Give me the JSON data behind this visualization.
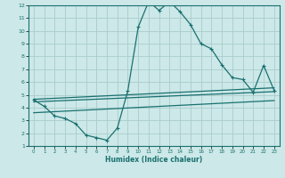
{
  "xlabel": "Humidex (Indice chaleur)",
  "bg_color": "#cce8e8",
  "grid_color": "#aacccc",
  "line_color": "#1a7070",
  "xlim": [
    -0.5,
    23.5
  ],
  "ylim": [
    1,
    12
  ],
  "xticks": [
    0,
    1,
    2,
    3,
    4,
    5,
    6,
    7,
    8,
    9,
    10,
    11,
    12,
    13,
    14,
    15,
    16,
    17,
    18,
    19,
    20,
    21,
    22,
    23
  ],
  "yticks": [
    1,
    2,
    3,
    4,
    5,
    6,
    7,
    8,
    9,
    10,
    11,
    12
  ],
  "main_line": {
    "x": [
      0,
      1,
      2,
      3,
      4,
      5,
      6,
      7,
      8,
      9,
      10,
      11,
      12,
      13,
      14,
      15,
      16,
      17,
      18,
      19,
      20,
      21,
      22,
      23
    ],
    "y": [
      4.6,
      4.1,
      3.35,
      3.15,
      2.75,
      1.85,
      1.65,
      1.45,
      2.4,
      5.3,
      10.3,
      12.3,
      11.6,
      12.3,
      11.5,
      10.5,
      9.0,
      8.6,
      7.35,
      6.35,
      6.2,
      5.2,
      7.3,
      5.35
    ]
  },
  "upper_band": {
    "x": [
      0,
      23
    ],
    "y": [
      4.65,
      5.55
    ]
  },
  "mid_band": {
    "x": [
      0,
      23
    ],
    "y": [
      4.45,
      5.25
    ]
  },
  "lower_band": {
    "x": [
      0,
      23
    ],
    "y": [
      3.6,
      4.55
    ]
  }
}
